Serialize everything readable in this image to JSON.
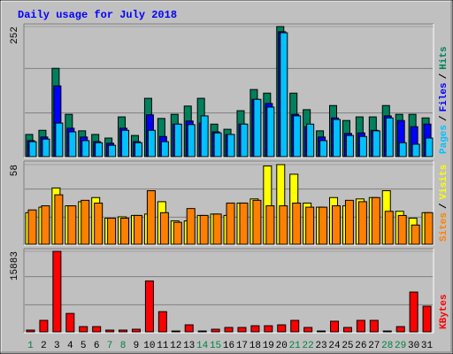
{
  "chart_data": {
    "type": "bar",
    "title": "Daily usage for July 2018",
    "categories": [
      "1",
      "2",
      "3",
      "4",
      "5",
      "6",
      "7",
      "8",
      "9",
      "10",
      "11",
      "12",
      "13",
      "14",
      "15",
      "16",
      "17",
      "18",
      "19",
      "20",
      "21",
      "22",
      "23",
      "24",
      "25",
      "26",
      "27",
      "28",
      "29",
      "30",
      "31"
    ],
    "category_colors": [
      "#008040",
      "#000000",
      "#000000",
      "#000000",
      "#000000",
      "#000000",
      "#008040",
      "#008040",
      "#000000",
      "#000000",
      "#000000",
      "#000000",
      "#000000",
      "#008040",
      "#008040",
      "#000000",
      "#000000",
      "#000000",
      "#000000",
      "#000000",
      "#008040",
      "#008040",
      "#000000",
      "#000000",
      "#000000",
      "#000000",
      "#000000",
      "#008040",
      "#008040",
      "#000000",
      "#000000"
    ],
    "legend_separator": "/",
    "panels": [
      {
        "ylim": [
          0,
          252
        ],
        "yticks": [
          252
        ],
        "series": [
          {
            "name": "Hits",
            "color": "#00805c",
            "values": [
              43,
              51,
              171,
              82,
              50,
              43,
              36,
              77,
              41,
              113,
              74,
              82,
              98,
              113,
              63,
              53,
              89,
              130,
              123,
              252,
              123,
              91,
              50,
              99,
              70,
              77,
              77,
              99,
              82,
              82,
              75
            ]
          },
          {
            "name": "Files",
            "color": "#0000ff",
            "values": [
              31,
              38,
              137,
              55,
              38,
              29,
              26,
              55,
              29,
              81,
              39,
              63,
              69,
              65,
              48,
              43,
              63,
              111,
              103,
              242,
              82,
              58,
              38,
              75,
              45,
              46,
              51,
              79,
              70,
              58,
              63
            ]
          },
          {
            "name": "Pages",
            "color": "#00c0ff",
            "values": [
              29,
              34,
              65,
              48,
              31,
              27,
              22,
              51,
              27,
              51,
              29,
              63,
              62,
              79,
              46,
              43,
              63,
              111,
              96,
              240,
              79,
              63,
              31,
              72,
              41,
              39,
              50,
              75,
              27,
              24,
              36
            ]
          }
        ]
      },
      {
        "ylim": [
          0,
          58
        ],
        "yticks": [
          58
        ],
        "series": [
          {
            "name": "Visits",
            "color": "#ffff00",
            "values": [
              23,
              27,
              41,
              28,
              31,
              34,
              19,
              20,
              21,
              22,
              31,
              17,
              17,
              21,
              22,
              21,
              30,
              33,
              57,
              58,
              51,
              30,
              27,
              34,
              28,
              33,
              34,
              39,
              24,
              19,
              23
            ]
          },
          {
            "name": "Sites",
            "color": "#ff8000",
            "values": [
              25,
              28,
              36,
              28,
              32,
              30,
              19,
              19,
              21,
              39,
              23,
              16,
              26,
              21,
              22,
              30,
              30,
              32,
              28,
              28,
              30,
              27,
              27,
              28,
              32,
              31,
              34,
              24,
              21,
              14,
              23
            ]
          }
        ]
      },
      {
        "ylim": [
          0,
          15883
        ],
        "yticks": [
          15883
        ],
        "series": [
          {
            "name": "KBytes",
            "color": "#ff0000",
            "values": [
              350,
              2270,
              15883,
              3640,
              1040,
              1040,
              350,
              350,
              520,
              10050,
              3990,
              170,
              1390,
              170,
              520,
              870,
              870,
              1210,
              1210,
              1390,
              2270,
              870,
              170,
              2100,
              870,
              2270,
              2270,
              170,
              1040,
              7850,
              5060
            ]
          }
        ]
      }
    ]
  }
}
